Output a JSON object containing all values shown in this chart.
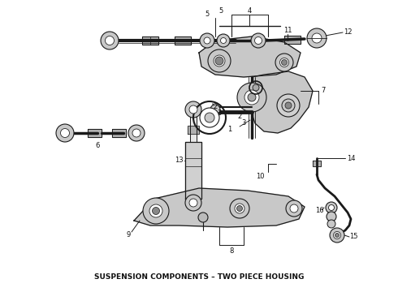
{
  "title": "SUSPENSION COMPONENTS – TWO PIECE HOUSING",
  "title_fontsize": 6.5,
  "bg_color": "#ffffff",
  "line_color": "#1a1a1a",
  "label_color": "#111111",
  "fig_width": 4.9,
  "fig_height": 3.6,
  "dpi": 100
}
